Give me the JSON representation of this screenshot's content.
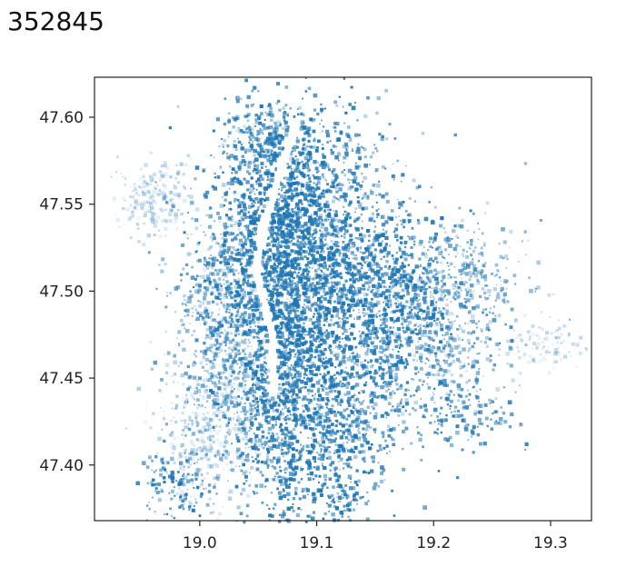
{
  "header": {
    "title": "352845"
  },
  "chart_data": {
    "type": "scatter",
    "title": "",
    "xlabel": "",
    "ylabel": "",
    "xlim": [
      18.91,
      19.335
    ],
    "ylim": [
      47.368,
      47.623
    ],
    "xticks": [
      19.0,
      19.1,
      19.2,
      19.3
    ],
    "xtick_labels": [
      "19.0",
      "19.1",
      "19.2",
      "19.3"
    ],
    "yticks": [
      47.4,
      47.45,
      47.5,
      47.55,
      47.6
    ],
    "ytick_labels": [
      "47.40",
      "47.45",
      "47.50",
      "47.55",
      "47.60"
    ],
    "grid": false,
    "colors": {
      "points": "#1f77b4",
      "axes": "#222222"
    },
    "series": [
      {
        "marker_color": "#1f77b4",
        "density_clusters": [
          {
            "x": 19.075,
            "y": 47.5,
            "sx": 0.03,
            "sy": 0.045,
            "n": 1600,
            "a": [
              0.6,
              1.0
            ]
          },
          {
            "x": 19.07,
            "y": 47.555,
            "sx": 0.025,
            "sy": 0.03,
            "n": 700,
            "a": [
              0.5,
              1.0
            ]
          },
          {
            "x": 19.115,
            "y": 47.55,
            "sx": 0.03,
            "sy": 0.03,
            "n": 500,
            "a": [
              0.3,
              0.9
            ]
          },
          {
            "x": 19.03,
            "y": 47.5,
            "sx": 0.025,
            "sy": 0.03,
            "n": 650,
            "a": [
              0.2,
              0.8
            ]
          },
          {
            "x": 19.03,
            "y": 47.45,
            "sx": 0.03,
            "sy": 0.03,
            "n": 550,
            "a": [
              0.1,
              0.6
            ]
          },
          {
            "x": 19.07,
            "y": 47.43,
            "sx": 0.02,
            "sy": 0.035,
            "n": 600,
            "a": [
              0.5,
              1.0
            ]
          },
          {
            "x": 19.14,
            "y": 47.47,
            "sx": 0.035,
            "sy": 0.03,
            "n": 650,
            "a": [
              0.4,
              1.0
            ]
          },
          {
            "x": 19.2,
            "y": 47.47,
            "sx": 0.03,
            "sy": 0.02,
            "n": 400,
            "a": [
              0.2,
              0.8
            ]
          },
          {
            "x": 19.22,
            "y": 47.51,
            "sx": 0.03,
            "sy": 0.015,
            "n": 300,
            "a": [
              0.2,
              0.7
            ]
          },
          {
            "x": 18.96,
            "y": 47.555,
            "sx": 0.015,
            "sy": 0.01,
            "n": 200,
            "a": [
              0.05,
              0.35
            ]
          },
          {
            "x": 19.0,
            "y": 47.42,
            "sx": 0.02,
            "sy": 0.02,
            "n": 300,
            "a": [
              0.05,
              0.4
            ]
          },
          {
            "x": 19.12,
            "y": 47.42,
            "sx": 0.025,
            "sy": 0.02,
            "n": 350,
            "a": [
              0.4,
              1.0
            ]
          },
          {
            "x": 19.29,
            "y": 47.47,
            "sx": 0.02,
            "sy": 0.008,
            "n": 120,
            "a": [
              0.05,
              0.3
            ]
          },
          {
            "x": 19.23,
            "y": 47.43,
            "sx": 0.02,
            "sy": 0.01,
            "n": 120,
            "a": [
              0.4,
              0.9
            ]
          },
          {
            "x": 18.975,
            "y": 47.39,
            "sx": 0.015,
            "sy": 0.01,
            "n": 120,
            "a": [
              0.4,
              1.0
            ]
          },
          {
            "x": 19.12,
            "y": 47.38,
            "sx": 0.01,
            "sy": 0.01,
            "n": 80,
            "a": [
              0.5,
              1.0
            ]
          },
          {
            "x": 19.05,
            "y": 47.59,
            "sx": 0.015,
            "sy": 0.01,
            "n": 150,
            "a": [
              0.2,
              0.8
            ]
          },
          {
            "x": 19.16,
            "y": 47.505,
            "sx": 0.03,
            "sy": 0.02,
            "n": 450,
            "a": [
              0.5,
              1.0
            ]
          }
        ]
      }
    ]
  }
}
